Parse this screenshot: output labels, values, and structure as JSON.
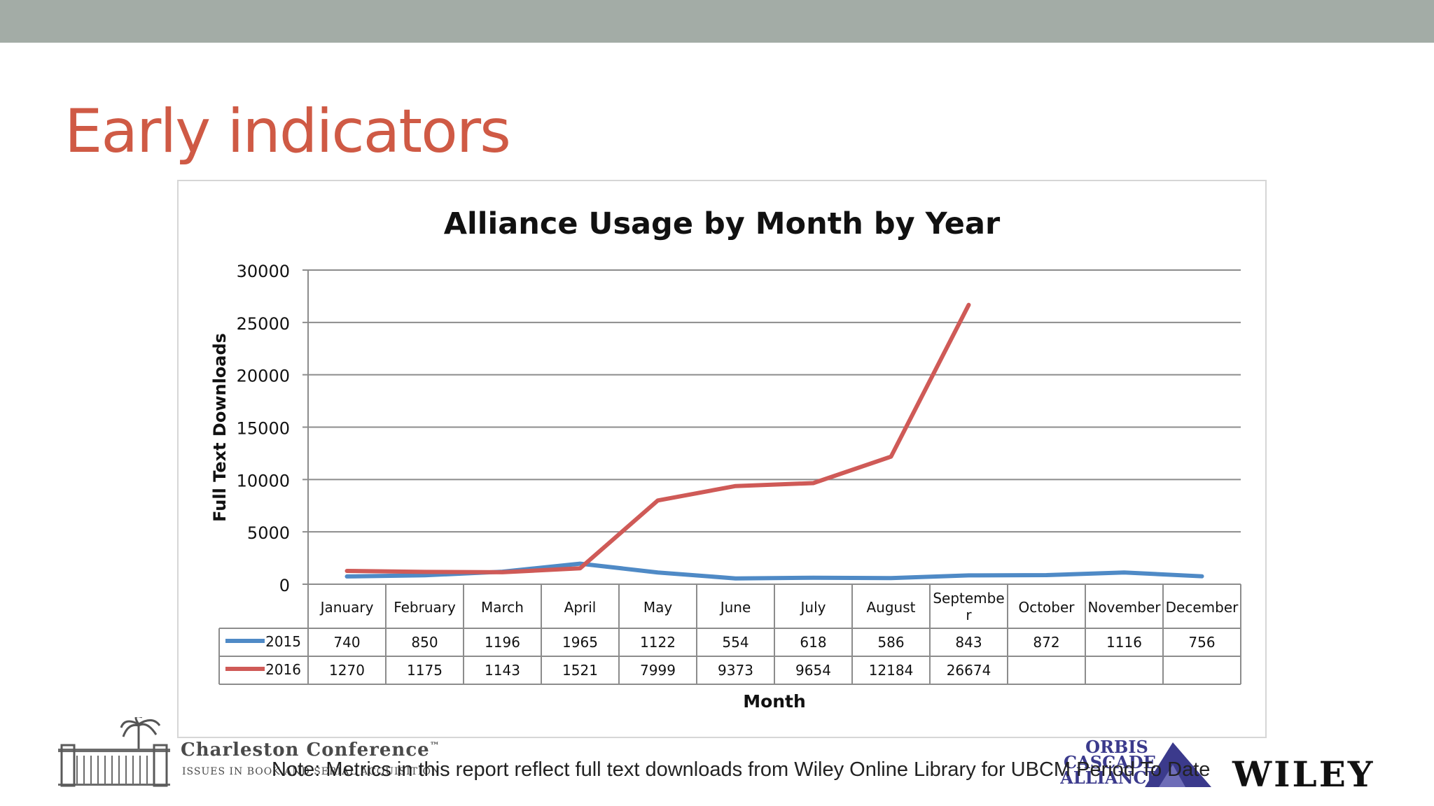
{
  "slide": {
    "title": "Early indicators"
  },
  "footer": {
    "note": "Note: Metrics in this report reflect full text downloads from Wiley Online Library for UBCM Period To Date",
    "charleston_name": "Charleston Conference",
    "charleston_tm": "™",
    "charleston_tagline": "ISSUES IN BOOK AND SERIAL ACQUISITION",
    "orbis_lines": [
      "ORBIS",
      "CASCADE",
      "ALLIANCE"
    ],
    "wiley": "WILEY"
  },
  "colors": {
    "title": "#cf5a45",
    "series_2015": "#4f8ac6",
    "series_2016": "#cf5a57",
    "band": "#a3aca6"
  },
  "chart_data": {
    "type": "line",
    "title": "Alliance Usage by Month by Year",
    "xlabel": "Month",
    "ylabel": "Full Text Downloads",
    "ylim": [
      0,
      30000
    ],
    "yticks": [
      0,
      5000,
      10000,
      15000,
      20000,
      25000,
      30000
    ],
    "grid": true,
    "legend": "data-table-left",
    "categories": [
      "January",
      "February",
      "March",
      "April",
      "May",
      "June",
      "July",
      "August",
      "Septembe\nr",
      "October",
      "November",
      "December"
    ],
    "series": [
      {
        "name": "2015",
        "color": "#4f8ac6",
        "values": [
          740,
          850,
          1196,
          1965,
          1122,
          554,
          618,
          586,
          843,
          872,
          1116,
          756
        ]
      },
      {
        "name": "2016",
        "color": "#cf5a57",
        "values": [
          1270,
          1175,
          1143,
          1521,
          7999,
          9373,
          9654,
          12184,
          26674,
          null,
          null,
          null
        ]
      }
    ]
  }
}
